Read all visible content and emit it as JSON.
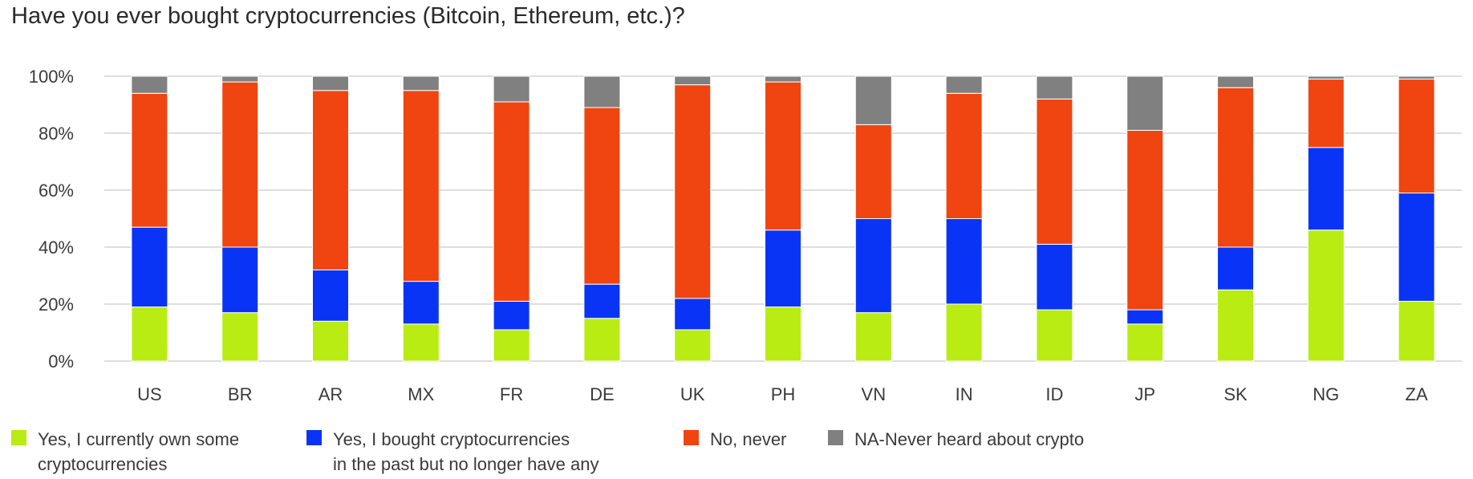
{
  "chart_data": {
    "type": "bar",
    "stacked": true,
    "title": "Have you ever bought cryptocurrencies (Bitcoin, Ethereum, etc.)?",
    "ylim": [
      0,
      100
    ],
    "yticks": [
      "0%",
      "20%",
      "40%",
      "60%",
      "80%",
      "100%"
    ],
    "grid": true,
    "legend_position": "bottom",
    "categories": [
      "US",
      "BR",
      "AR",
      "MX",
      "FR",
      "DE",
      "UK",
      "PH",
      "VN",
      "IN",
      "ID",
      "JP",
      "SK",
      "NG",
      "ZA"
    ],
    "series": [
      {
        "name": "Yes, I currently own some\ncryptocurrencies",
        "color": "#b8ec12",
        "values": [
          19,
          17,
          14,
          13,
          11,
          15,
          11,
          19,
          17,
          20,
          18,
          13,
          25,
          46,
          21
        ]
      },
      {
        "name": "Yes, I bought cryptocurrencies\nin the past but no longer have any",
        "color": "#0a34f5",
        "values": [
          28,
          23,
          18,
          15,
          10,
          12,
          11,
          27,
          33,
          30,
          23,
          5,
          15,
          29,
          38
        ]
      },
      {
        "name": "No, never",
        "color": "#f04510",
        "values": [
          47,
          58,
          63,
          67,
          70,
          62,
          75,
          52,
          33,
          44,
          51,
          63,
          56,
          24,
          40
        ]
      },
      {
        "name": "NA-Never heard about crypto",
        "color": "#808080",
        "values": [
          6,
          2,
          5,
          5,
          9,
          11,
          3,
          2,
          17,
          6,
          8,
          19,
          4,
          1,
          1
        ]
      }
    ]
  }
}
